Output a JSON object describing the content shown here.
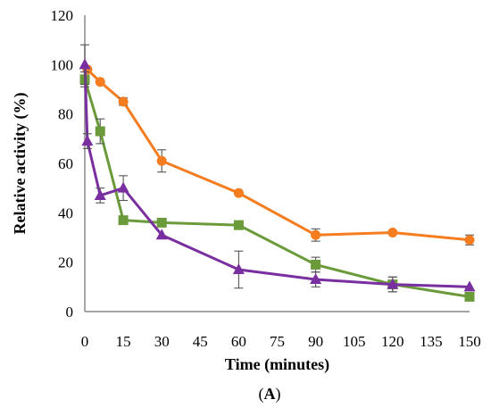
{
  "chart_data": {
    "type": "line",
    "xlabel": "Time (minutes)",
    "ylabel": "Relative activity (%)",
    "caption_open": "(",
    "caption_letter": "A",
    "caption_close": ")",
    "xlim": [
      0,
      150
    ],
    "ylim": [
      0,
      120
    ],
    "xticks": [
      0,
      15,
      30,
      45,
      60,
      75,
      90,
      105,
      120,
      135,
      150
    ],
    "yticks": [
      0,
      20,
      40,
      60,
      80,
      100,
      120
    ],
    "grid": false,
    "legend": "none",
    "series": [
      {
        "color": "#f57c1f",
        "marker": "circle",
        "x": [
          1,
          6,
          15,
          30,
          60,
          90,
          120,
          150
        ],
        "y": [
          98,
          93,
          85,
          61,
          48,
          31,
          32,
          29
        ],
        "err": [
          0,
          0,
          1.5,
          4.5,
          0,
          2.5,
          0,
          2
        ]
      },
      {
        "color": "#6a9a3a",
        "marker": "square",
        "x": [
          0,
          6,
          15,
          30,
          60,
          90,
          120,
          150
        ],
        "y": [
          94,
          73,
          37,
          36,
          35,
          19,
          11,
          6
        ],
        "err": [
          3,
          5,
          0,
          0,
          0,
          3,
          3,
          0
        ]
      },
      {
        "color": "#7a2fa0",
        "marker": "triangle",
        "x": [
          0,
          1,
          6,
          15,
          30,
          60,
          90,
          120,
          150
        ],
        "y": [
          100,
          69,
          47,
          50,
          31,
          17,
          13,
          11,
          10
        ],
        "err": [
          8,
          3,
          3,
          5,
          0,
          7.5,
          3,
          3,
          0
        ]
      }
    ]
  }
}
